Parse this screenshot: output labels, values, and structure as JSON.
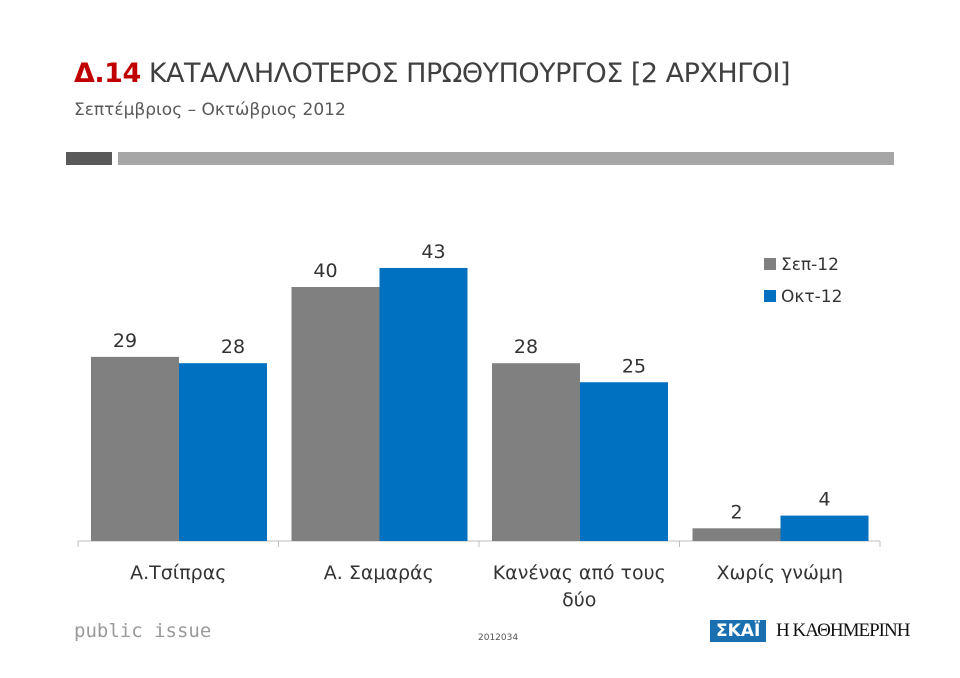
{
  "header": {
    "title_num": "Δ.14",
    "title_text": "ΚΑΤΑΛΛΗΛΟΤΕΡΟΣ ΠΡΩΘΥΠΟΥΡΓΟΣ [2 ΑΡΧΗΓΟΙ]",
    "subtitle": "Σεπτέμβριος – Οκτώβριος 2012"
  },
  "footer": {
    "brand": "public issue",
    "code": "2012034",
    "logo_skai": "ΣΚΑΪ",
    "logo_kathimerini": "Η ΚΑΘΗΜΕΡΙΝΗ"
  },
  "chart_data": {
    "type": "bar",
    "categories": [
      [
        "Α.Τσίπρας"
      ],
      [
        "Α. Σαμαράς"
      ],
      [
        "Κανένας από τους",
        "δύο"
      ],
      [
        "Χωρίς γνώμη"
      ]
    ],
    "series": [
      {
        "name": "Σεπ-12",
        "color": "#808080",
        "values": [
          29,
          40,
          28,
          2
        ]
      },
      {
        "name": "Οκτ-12",
        "color": "#0070c0",
        "values": [
          28,
          43,
          25,
          4
        ]
      }
    ],
    "legend": "top-right",
    "grid": false,
    "data_labels": true,
    "ylim": [
      0,
      45
    ]
  }
}
